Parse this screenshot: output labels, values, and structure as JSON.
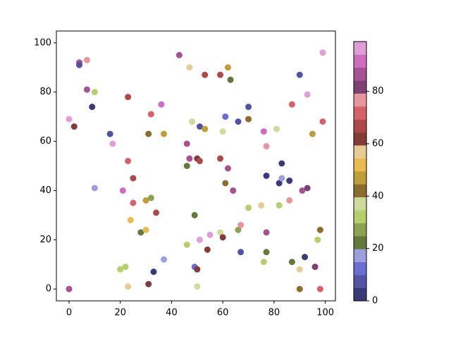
{
  "chart_data": {
    "type": "scatter",
    "x": [
      0,
      2,
      4,
      4,
      7,
      7,
      9,
      10,
      10,
      0,
      16,
      17,
      21,
      20,
      22,
      23,
      23,
      23,
      25,
      25,
      24,
      28,
      30,
      30,
      32,
      31,
      32,
      34,
      31,
      33,
      36,
      37,
      37,
      43,
      47,
      46,
      47,
      46,
      46,
      48,
      49,
      49,
      50,
      50,
      50,
      51,
      51,
      51,
      53,
      53,
      54,
      55,
      59,
      59,
      59,
      60,
      60,
      61,
      61,
      62,
      62,
      63,
      64,
      66,
      66,
      67,
      67,
      70,
      70,
      70,
      75,
      76,
      76,
      77,
      77,
      77,
      77,
      81,
      82,
      82,
      83,
      83,
      86,
      86,
      87,
      87,
      90,
      90,
      90,
      91,
      92,
      93,
      93,
      95,
      96,
      97,
      98,
      98,
      99,
      99
    ],
    "y": [
      69,
      66,
      92,
      91,
      93,
      81,
      74,
      80,
      41,
      0,
      63,
      59,
      40,
      8,
      9,
      1,
      78,
      52,
      45,
      35,
      28,
      23,
      24,
      36,
      37,
      63,
      71,
      31,
      2,
      7,
      75,
      63,
      12,
      95,
      90,
      59,
      53,
      50,
      18,
      68,
      30,
      9,
      8,
      1,
      53,
      52,
      66,
      20,
      87,
      65,
      16,
      22,
      87,
      53,
      23,
      21,
      64,
      70,
      43,
      90,
      49,
      85,
      40,
      68,
      24,
      26,
      15,
      74,
      69,
      33,
      34,
      64,
      11,
      58,
      46,
      23,
      15,
      65,
      43,
      34,
      51,
      45,
      44,
      36,
      75,
      11,
      87,
      8,
      0,
      40,
      13,
      79,
      41,
      63,
      9,
      20,
      24,
      0,
      68,
      96
    ],
    "c": [
      97,
      62,
      87,
      7,
      77,
      87,
      2,
      32,
      17,
      87,
      7,
      97,
      92,
      32,
      32,
      57,
      67,
      72,
      67,
      72,
      52,
      22,
      52,
      47,
      27,
      42,
      72,
      67,
      62,
      2,
      92,
      47,
      17,
      87,
      57,
      87,
      87,
      22,
      32,
      37,
      22,
      12,
      62,
      37,
      62,
      67,
      7,
      97,
      67,
      47,
      62,
      97,
      67,
      67,
      37,
      62,
      37,
      12,
      42,
      47,
      87,
      22,
      87,
      7,
      27,
      77,
      7,
      7,
      42,
      32,
      57,
      92,
      32,
      77,
      2,
      87,
      22,
      37,
      2,
      32,
      2,
      17,
      2,
      77,
      72,
      22,
      7,
      57,
      42,
      87,
      2,
      97,
      82,
      47,
      82,
      32,
      42,
      72,
      72,
      97
    ],
    "colormap": [
      "#393b79",
      "#5254a3",
      "#6b6ecf",
      "#9c9ede",
      "#637939",
      "#8ca252",
      "#b5cf6b",
      "#cedb9c",
      "#8c6d31",
      "#bd9e39",
      "#e7ba52",
      "#e7cb94",
      "#843c39",
      "#ad494a",
      "#d6616b",
      "#e7969c",
      "#7b4173",
      "#a55194",
      "#ce6dbd",
      "#de9ed6"
    ],
    "clim": [
      0,
      99
    ],
    "cticks": [
      0,
      20,
      40,
      60,
      80
    ],
    "xlim": [
      -4.95,
      103.95
    ],
    "xticks": [
      0,
      20,
      40,
      60,
      80,
      100
    ],
    "ylim": [
      -4.8,
      104.8
    ],
    "yticks": [
      0,
      20,
      40,
      60,
      80,
      100
    ]
  }
}
